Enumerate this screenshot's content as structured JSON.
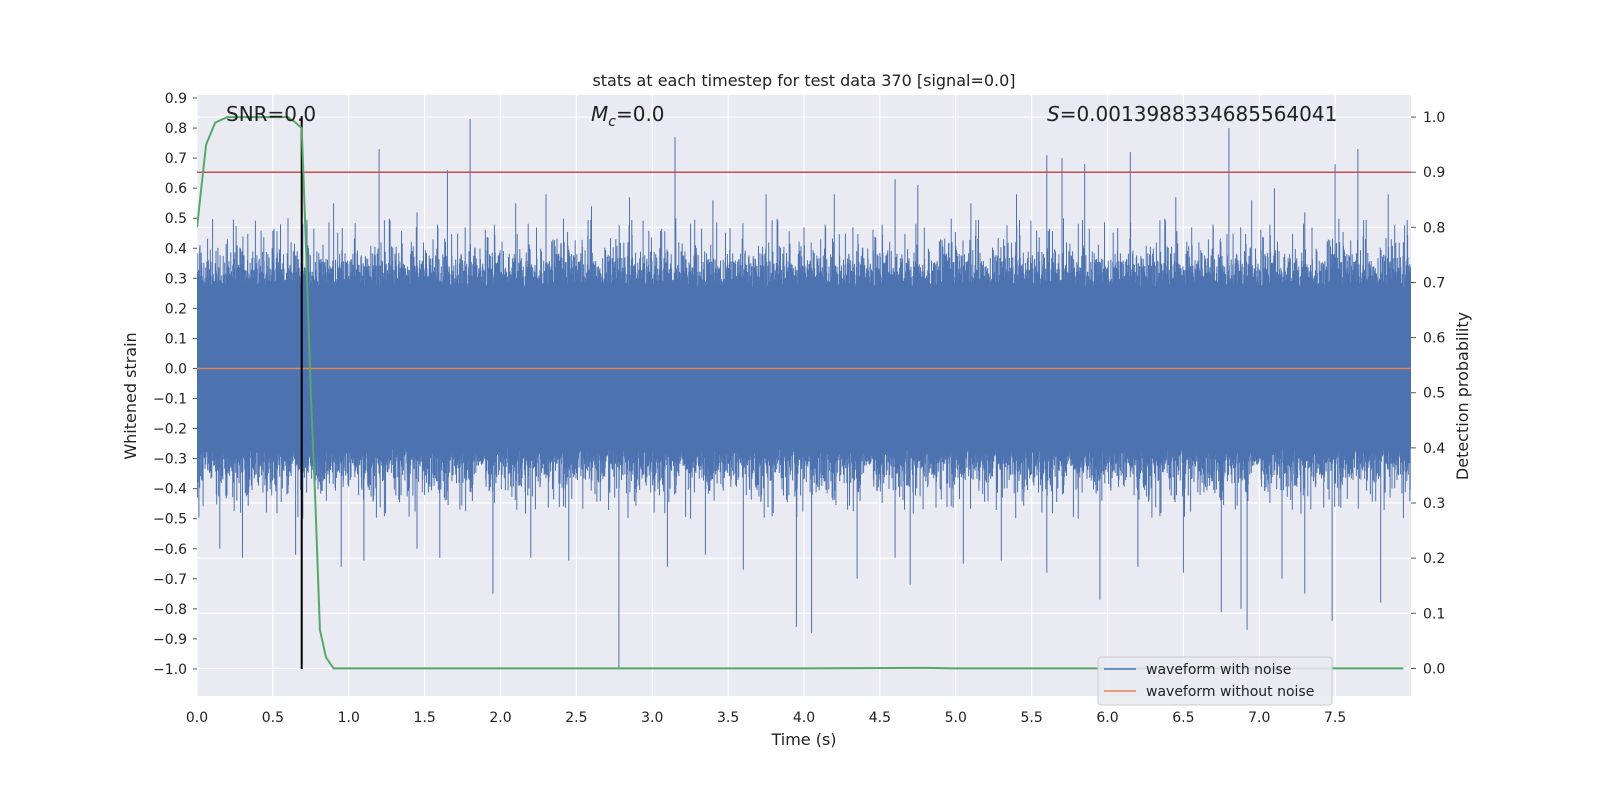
{
  "chart_data": {
    "type": "line",
    "title": "stats at each timestep for test data 370 [signal=0.0]",
    "xlabel": "Time (s)",
    "ylabel": "Whitened strain",
    "y2label": "Detection probability",
    "xlim": [
      0.0,
      8.0
    ],
    "ylim": [
      -1.09,
      0.91
    ],
    "y2lim": [
      -0.05,
      1.04
    ],
    "xticks": [
      "0.0",
      "0.5",
      "1.0",
      "1.5",
      "2.0",
      "2.5",
      "3.0",
      "3.5",
      "4.0",
      "4.5",
      "5.0",
      "5.5",
      "6.0",
      "6.5",
      "7.0",
      "7.5"
    ],
    "yticks": [
      "0.9",
      "0.8",
      "0.7",
      "0.6",
      "0.5",
      "0.4",
      "0.3",
      "0.2",
      "0.1",
      "0.0",
      "−0.1",
      "−0.2",
      "−0.3",
      "−0.4",
      "−0.5",
      "−0.6",
      "−0.7",
      "−0.8",
      "−0.9",
      "−1.0"
    ],
    "y2ticks": [
      "1.0",
      "0.9",
      "0.8",
      "0.7",
      "0.6",
      "0.5",
      "0.4",
      "0.3",
      "0.2",
      "0.1",
      "0.0"
    ],
    "grid": true,
    "legend_position": "bottom-right",
    "annotations": {
      "snr": "SNR=0.0",
      "mc_symbol": "M",
      "mc_sub": "c",
      "mc_value": "=0.0",
      "s_symbol": "S",
      "s_value": "=0.0013988334685564041"
    },
    "series": [
      {
        "name": "waveform with noise",
        "color": "#4c72b0",
        "kind": "noise",
        "sample_rate": 2048,
        "core_amplitude": 0.28,
        "upper_spikes": [
          [
            0.2,
            0.43
          ],
          [
            0.55,
            0.48
          ],
          [
            0.9,
            0.55
          ],
          [
            1.2,
            0.73
          ],
          [
            1.45,
            0.52
          ],
          [
            1.65,
            0.66
          ],
          [
            1.8,
            0.83
          ],
          [
            2.1,
            0.55
          ],
          [
            2.3,
            0.58
          ],
          [
            2.6,
            0.54
          ],
          [
            2.85,
            0.57
          ],
          [
            3.15,
            0.77
          ],
          [
            3.4,
            0.56
          ],
          [
            3.75,
            0.58
          ],
          [
            4.2,
            0.58
          ],
          [
            4.6,
            0.63
          ],
          [
            4.75,
            0.61
          ],
          [
            5.1,
            0.55
          ],
          [
            5.4,
            0.58
          ],
          [
            5.6,
            0.71
          ],
          [
            5.7,
            0.7
          ],
          [
            5.85,
            0.68
          ],
          [
            6.15,
            0.72
          ],
          [
            6.45,
            0.57
          ],
          [
            6.8,
            0.8
          ],
          [
            6.95,
            0.56
          ],
          [
            7.1,
            0.6
          ],
          [
            7.3,
            0.52
          ],
          [
            7.5,
            0.68
          ],
          [
            7.65,
            0.73
          ],
          [
            7.85,
            0.58
          ]
        ],
        "lower_spikes": [
          [
            0.15,
            -0.6
          ],
          [
            0.3,
            -0.63
          ],
          [
            0.65,
            -0.62
          ],
          [
            0.95,
            -0.66
          ],
          [
            1.1,
            -0.64
          ],
          [
            1.45,
            -0.6
          ],
          [
            1.6,
            -0.63
          ],
          [
            1.95,
            -0.75
          ],
          [
            2.2,
            -0.63
          ],
          [
            2.45,
            -0.64
          ],
          [
            2.78,
            -1.0
          ],
          [
            3.1,
            -0.66
          ],
          [
            3.35,
            -0.62
          ],
          [
            3.6,
            -0.67
          ],
          [
            3.95,
            -0.86
          ],
          [
            4.05,
            -0.88
          ],
          [
            4.35,
            -0.7
          ],
          [
            4.6,
            -0.63
          ],
          [
            4.7,
            -0.72
          ],
          [
            5.05,
            -0.65
          ],
          [
            5.3,
            -0.64
          ],
          [
            5.6,
            -0.68
          ],
          [
            5.95,
            -0.77
          ],
          [
            6.2,
            -0.66
          ],
          [
            6.5,
            -0.68
          ],
          [
            6.75,
            -0.81
          ],
          [
            6.88,
            -0.8
          ],
          [
            6.92,
            -0.87
          ],
          [
            7.15,
            -0.7
          ],
          [
            7.3,
            -0.75
          ],
          [
            7.48,
            -0.84
          ],
          [
            7.8,
            -0.78
          ]
        ]
      },
      {
        "name": "waveform without noise",
        "color": "#dd8452",
        "x": [
          0.0,
          8.0
        ],
        "y": [
          0.0,
          0.0
        ]
      },
      {
        "name": "detection probability",
        "color": "#55a868",
        "axis": "right",
        "x": [
          0.0,
          0.06,
          0.12,
          0.2,
          0.3,
          0.4,
          0.5,
          0.6,
          0.65,
          0.69,
          0.72,
          0.75,
          0.78,
          0.81,
          0.85,
          0.9,
          1.0,
          2.0,
          4.0,
          4.8,
          5.0,
          6.0,
          7.0,
          7.95
        ],
        "y": [
          0.8,
          0.95,
          0.99,
          1.0,
          1.0,
          1.0,
          1.0,
          1.0,
          0.99,
          0.98,
          0.75,
          0.5,
          0.3,
          0.07,
          0.02,
          0.0,
          0.0,
          0.0,
          0.0,
          0.001,
          0.0,
          0.0,
          0.0,
          0.0
        ]
      }
    ],
    "reference_lines": [
      {
        "orientation": "horizontal",
        "axis": "right",
        "value": 0.9,
        "color": "#c44e52"
      },
      {
        "orientation": "vertical",
        "value": 0.69,
        "y_from": -1.0,
        "y_to": 0.84,
        "color": "#000000"
      }
    ]
  }
}
